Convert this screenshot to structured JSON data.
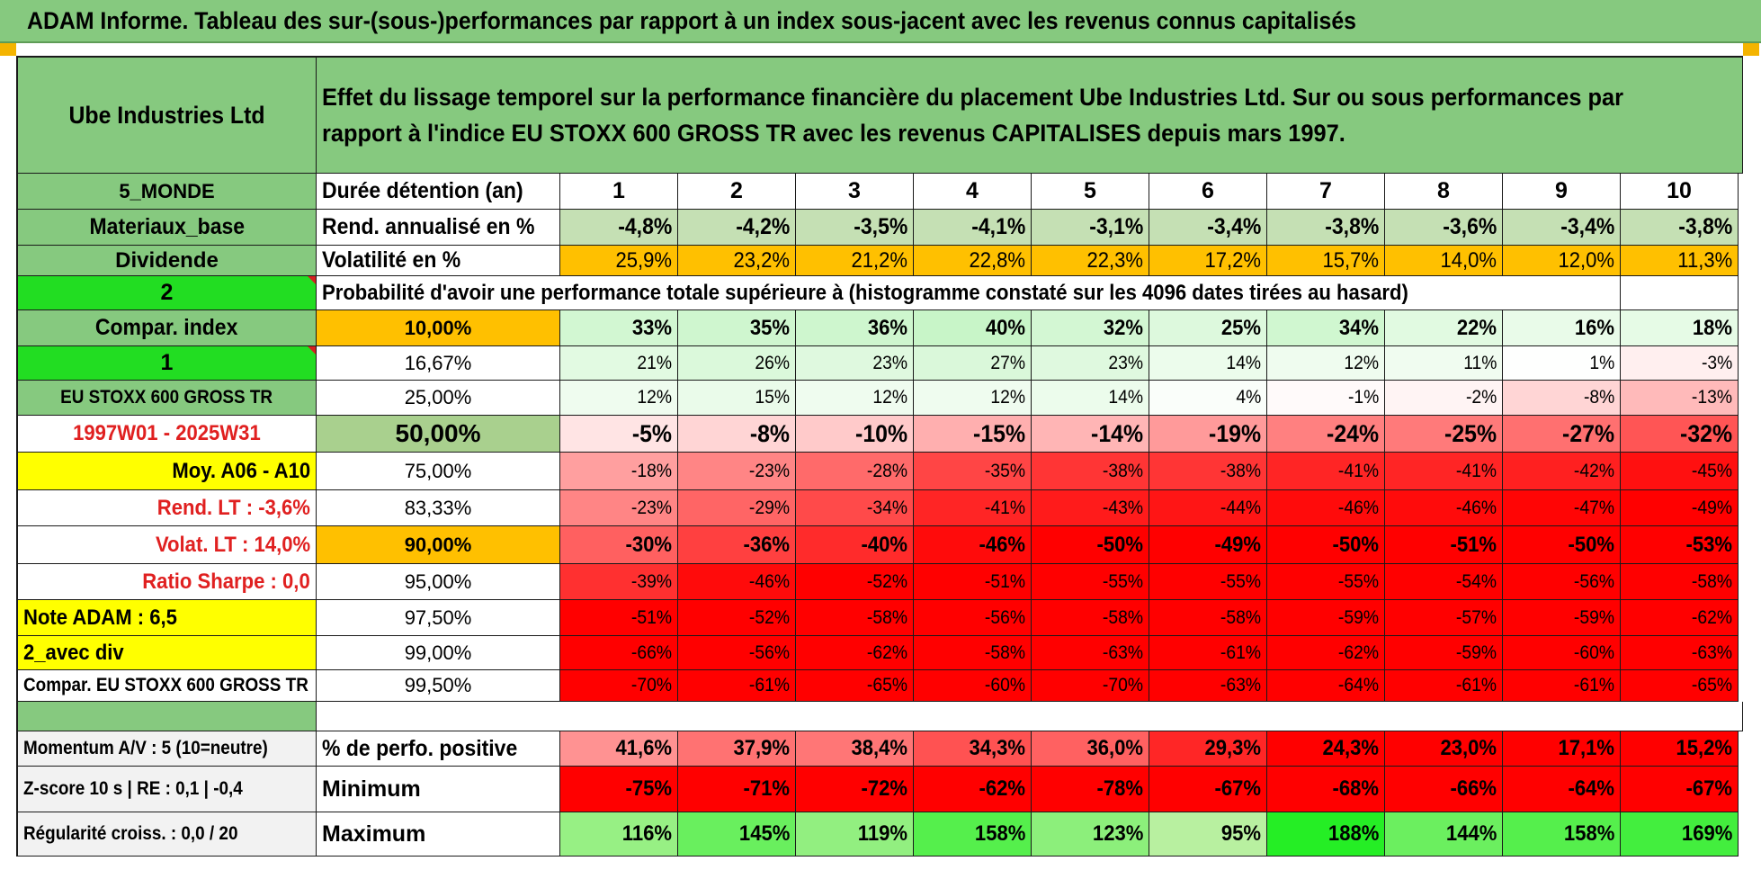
{
  "title": "ADAM Informe. Tableau des sur-(sous-)performances par rapport à un index sous-jacent avec les revenus connus capitalisés",
  "colors": {
    "header_green": "#86c97f",
    "bright_green": "#22dd22",
    "orange": "#ffc000",
    "yellow": "#ffff00",
    "red_text": "#e02020",
    "deep_red": "#ff0000"
  },
  "left": {
    "company": "Ube Industries Ltd",
    "region": "5_MONDE",
    "sector": "Materiaux_base",
    "dividend": "Dividende",
    "n2": "2",
    "compar_index": "Compar. index",
    "n1": "1",
    "index_name": "EU STOXX 600 GROSS TR",
    "period": "1997W01 - 2025W31",
    "moy": "Moy. A06 - A10",
    "rend_lt": "Rend. LT :    -3,6%",
    "volat_lt": "Volat. LT :    14,0%",
    "sharpe": "Ratio Sharpe :     0,0",
    "note": "Note ADAM : 6,5",
    "avec_div": "2_avec div",
    "compar_full": "Compar. EU STOXX 600 GROSS TR"
  },
  "description": "Effet du lissage temporel sur la performance financière du placement Ube Industries Ltd. Sur ou sous performances par rapport à l'indice EU STOXX 600 GROSS TR avec les revenus CAPITALISES depuis mars 1997.",
  "duration_label": "Durée détention (an)",
  "years": [
    "1",
    "2",
    "3",
    "4",
    "5",
    "6",
    "7",
    "8",
    "9",
    "10"
  ],
  "rend_label": "Rend. annualisé en %",
  "rend": [
    "-4,8%",
    "-4,2%",
    "-3,5%",
    "-4,1%",
    "-3,1%",
    "-3,4%",
    "-3,8%",
    "-3,6%",
    "-3,4%",
    "-3,8%"
  ],
  "vol_label": "Volatilité en %",
  "vol": [
    "25,9%",
    "23,2%",
    "21,2%",
    "22,8%",
    "22,3%",
    "17,2%",
    "15,7%",
    "14,0%",
    "12,0%",
    "11,3%"
  ],
  "prob_label": "Probabilité d'avoir une performance totale supérieure à (histogramme constaté sur les 4096 dates tirées au hasard)",
  "prob_rows": [
    {
      "p": "10,00%",
      "v": [
        "33%",
        "35%",
        "36%",
        "40%",
        "32%",
        "25%",
        "34%",
        "22%",
        "16%",
        "18%"
      ]
    },
    {
      "p": "16,67%",
      "v": [
        "21%",
        "26%",
        "23%",
        "27%",
        "23%",
        "14%",
        "12%",
        "11%",
        "1%",
        "-3%"
      ]
    },
    {
      "p": "25,00%",
      "v": [
        "12%",
        "15%",
        "12%",
        "12%",
        "14%",
        "4%",
        "-1%",
        "-2%",
        "-8%",
        "-13%"
      ]
    },
    {
      "p": "50,00%",
      "v": [
        "-5%",
        "-8%",
        "-10%",
        "-15%",
        "-14%",
        "-19%",
        "-24%",
        "-25%",
        "-27%",
        "-32%"
      ]
    },
    {
      "p": "75,00%",
      "v": [
        "-18%",
        "-23%",
        "-28%",
        "-35%",
        "-38%",
        "-38%",
        "-41%",
        "-41%",
        "-42%",
        "-45%"
      ]
    },
    {
      "p": "83,33%",
      "v": [
        "-23%",
        "-29%",
        "-34%",
        "-41%",
        "-43%",
        "-44%",
        "-46%",
        "-46%",
        "-47%",
        "-49%"
      ]
    },
    {
      "p": "90,00%",
      "v": [
        "-30%",
        "-36%",
        "-40%",
        "-46%",
        "-50%",
        "-49%",
        "-50%",
        "-51%",
        "-50%",
        "-53%"
      ]
    },
    {
      "p": "95,00%",
      "v": [
        "-39%",
        "-46%",
        "-52%",
        "-51%",
        "-55%",
        "-55%",
        "-55%",
        "-54%",
        "-56%",
        "-58%"
      ]
    },
    {
      "p": "97,50%",
      "v": [
        "-51%",
        "-52%",
        "-58%",
        "-56%",
        "-58%",
        "-58%",
        "-59%",
        "-57%",
        "-59%",
        "-62%"
      ]
    },
    {
      "p": "99,00%",
      "v": [
        "-66%",
        "-56%",
        "-62%",
        "-58%",
        "-63%",
        "-61%",
        "-62%",
        "-59%",
        "-60%",
        "-63%"
      ]
    },
    {
      "p": "99,50%",
      "v": [
        "-70%",
        "-61%",
        "-65%",
        "-60%",
        "-70%",
        "-63%",
        "-64%",
        "-61%",
        "-61%",
        "-65%"
      ]
    }
  ],
  "bottom": {
    "momentum": "Momentum A/V : 5 (10=neutre)",
    "zscore": "Z-score 10 s | RE : 0,1 | -0,4",
    "regularite": "Régularité croiss. : 0,0 / 20",
    "pos_label": "% de perfo. positive",
    "pos": [
      "41,6%",
      "37,9%",
      "38,4%",
      "34,3%",
      "36,0%",
      "29,3%",
      "24,3%",
      "23,0%",
      "17,1%",
      "15,2%"
    ],
    "min_label": "Minimum",
    "min": [
      "-75%",
      "-71%",
      "-72%",
      "-62%",
      "-78%",
      "-67%",
      "-68%",
      "-66%",
      "-64%",
      "-67%"
    ],
    "max_label": "Maximum",
    "max": [
      "116%",
      "145%",
      "119%",
      "158%",
      "123%",
      "95%",
      "188%",
      "144%",
      "158%",
      "169%"
    ]
  }
}
